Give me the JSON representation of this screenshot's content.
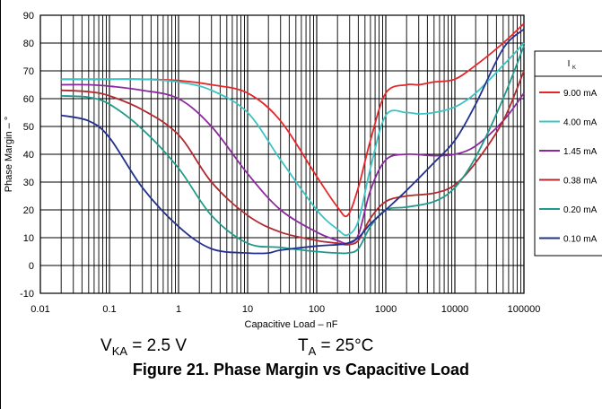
{
  "chart_data": {
    "type": "line",
    "title": "Phase Margin vs Capacitive Load",
    "xlabel": "Capacitive Load – nF",
    "ylabel": "Phase Margin – °",
    "x_scale": "log",
    "xlim": [
      0.01,
      100000
    ],
    "ylim": [
      -10,
      90
    ],
    "x_ticks": [
      0.01,
      0.1,
      1,
      10,
      100,
      1000,
      10000,
      100000
    ],
    "x_tick_labels": [
      "0.01",
      "0.1",
      "1",
      "10",
      "100",
      "1000",
      "10000",
      "100000"
    ],
    "y_ticks": [
      -10,
      0,
      10,
      20,
      30,
      40,
      50,
      60,
      70,
      80,
      90
    ],
    "y_tick_labels": [
      "-10",
      "0",
      "10",
      "20",
      "30",
      "40",
      "50",
      "60",
      "70",
      "80",
      "90"
    ],
    "grid": true,
    "legend_title": "I",
    "legend_title_sub": "K",
    "legend_position": "right",
    "series": [
      {
        "name": "9.00 mA",
        "color": "#e8262a",
        "x": [
          0.02,
          0.05,
          0.1,
          0.3,
          1,
          3,
          10,
          30,
          100,
          200,
          280,
          400,
          600,
          1000,
          2000,
          3000,
          5000,
          10000,
          20000,
          50000,
          100000
        ],
        "y": [
          67,
          67,
          67,
          67,
          66.5,
          65,
          62,
          52,
          32,
          21,
          18,
          28,
          45,
          62,
          65,
          65,
          66,
          67,
          72,
          80,
          87
        ]
      },
      {
        "name": "4.00 mA",
        "color": "#3cc4c4",
        "x": [
          0.02,
          0.05,
          0.1,
          0.3,
          1,
          3,
          10,
          30,
          100,
          200,
          280,
          400,
          600,
          1000,
          2000,
          3000,
          5000,
          10000,
          20000,
          50000,
          100000
        ],
        "y": [
          67,
          67,
          67,
          67,
          66,
          63,
          55,
          38,
          20,
          13,
          11,
          16,
          35,
          54,
          55,
          54.5,
          55,
          57,
          62,
          72,
          80
        ]
      },
      {
        "name": "1.45 mA",
        "color": "#8a2a9e",
        "x": [
          0.02,
          0.05,
          0.1,
          0.3,
          1,
          3,
          10,
          30,
          100,
          200,
          280,
          400,
          600,
          1000,
          2000,
          5000,
          10000,
          20000,
          50000,
          100000
        ],
        "y": [
          65,
          65,
          64.5,
          63,
          60,
          50,
          33,
          20,
          12,
          9,
          8,
          11,
          27,
          38,
          40,
          39.5,
          40,
          43,
          52,
          62
        ]
      },
      {
        "name": "0.38 mA",
        "color": "#b02a30",
        "x": [
          0.02,
          0.05,
          0.1,
          0.3,
          1,
          3,
          10,
          30,
          100,
          200,
          280,
          400,
          600,
          1000,
          2000,
          5000,
          10000,
          20000,
          50000,
          100000
        ],
        "y": [
          63,
          62.5,
          61,
          56,
          47,
          30,
          18,
          12,
          9,
          8,
          7.5,
          9,
          17,
          23,
          25,
          26,
          29,
          37,
          52,
          70
        ]
      },
      {
        "name": "0.20 mA",
        "color": "#1f9a8a",
        "x": [
          0.02,
          0.05,
          0.1,
          0.3,
          1,
          3,
          10,
          30,
          100,
          200,
          280,
          400,
          600,
          1000,
          2000,
          5000,
          10000,
          20000,
          50000,
          100000
        ],
        "y": [
          61,
          60.5,
          58,
          49,
          35,
          18,
          8,
          6.5,
          5,
          4.5,
          4.5,
          6,
          14,
          20,
          21,
          23,
          28,
          39,
          60,
          79
        ]
      },
      {
        "name": "0.10 mA",
        "color": "#22318f",
        "x": [
          0.02,
          0.05,
          0.1,
          0.3,
          1,
          3,
          10,
          20,
          30,
          100,
          200,
          280,
          400,
          600,
          1000,
          2000,
          5000,
          10000,
          20000,
          50000,
          100000
        ],
        "y": [
          54,
          52,
          46,
          28,
          14,
          6,
          4.5,
          4.5,
          5.5,
          7,
          7.5,
          8,
          10,
          15,
          20,
          27,
          37,
          45,
          58,
          78,
          85
        ]
      }
    ]
  },
  "conditions": {
    "vka_symbol": "V",
    "vka_sub": "KA",
    "vka_value": " = 2.5 V",
    "ta_symbol": "T",
    "ta_sub": "A",
    "ta_value": " = 25°C"
  },
  "caption": "Figure 21. Phase Margin vs Capacitive Load"
}
